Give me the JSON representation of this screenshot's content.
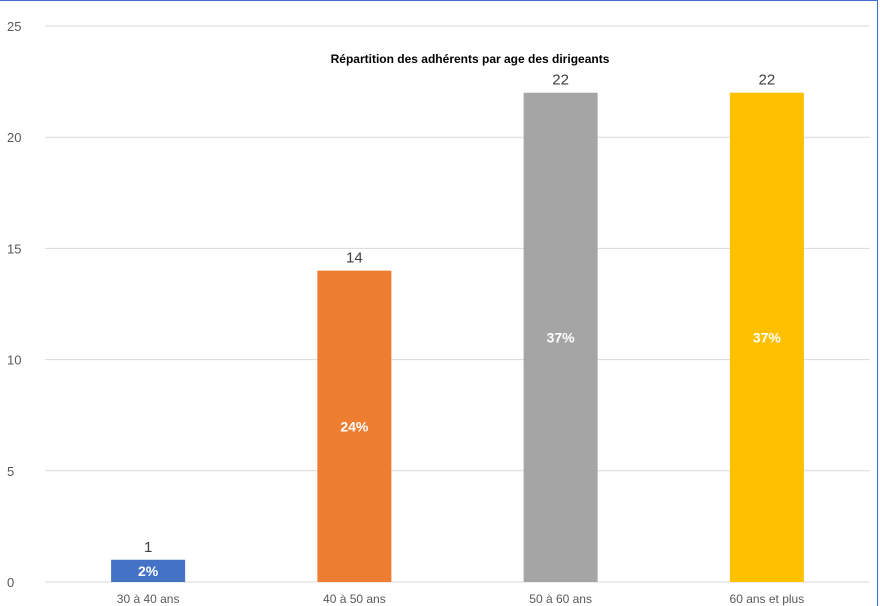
{
  "chart_data": {
    "type": "bar",
    "title": "Répartition des adhérents par age des dirigeants",
    "xlabel": "",
    "ylabel": "",
    "categories": [
      "30 à 40 ans",
      "40 à 50 ans",
      "50 à 60 ans",
      "60 ans et plus"
    ],
    "values": [
      1,
      14,
      22,
      22
    ],
    "value_labels": [
      "1",
      "14",
      "22",
      "22"
    ],
    "percent_labels": [
      "2%",
      "24%",
      "37%",
      "37%"
    ],
    "colors": [
      "#4472c4",
      "#ed7d31",
      "#a5a5a5",
      "#ffc000"
    ],
    "ylim": [
      0,
      25
    ],
    "yticks": [
      0,
      5,
      10,
      15,
      20,
      25
    ],
    "grid": true,
    "legend": "none"
  }
}
